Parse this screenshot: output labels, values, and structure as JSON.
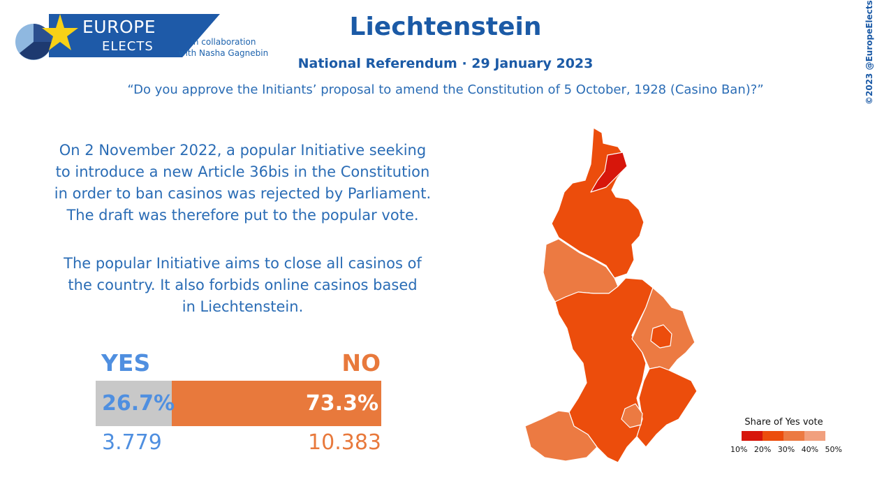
{
  "logo": {
    "line1": "EUROPE",
    "line2": "ELECTS"
  },
  "collaboration": {
    "line1": "in collaboration",
    "line2": "with Nasha Gagnebin"
  },
  "header": {
    "title": "Liechtenstein",
    "subtitle": "National Referendum · 29 January 2023",
    "question": "“Do you approve the Initiants’ proposal to amend the Constitution of 5 October, 1928 (Casino Ban)?”"
  },
  "credit": "©2023 @EuropeElects",
  "description": {
    "p1_lines": [
      "On 2 November 2022, a popular Initiative seeking",
      "to introduce a new Article 36bis in the Constitution",
      "in order to ban casinos was rejected by Parliament.",
      "The draft was therefore put to the popular vote."
    ],
    "p2_lines": [
      "The popular Initiative aims to close all casinos of",
      "the country. It also forbids online casinos based",
      "in Liechtenstein."
    ]
  },
  "results": {
    "yes_label": "YES",
    "no_label": "NO",
    "yes_pct_text": "26.7%",
    "no_pct_text": "73.3%",
    "yes_share": 26.7,
    "no_share": 73.3,
    "yes_votes": "3.779",
    "no_votes": "10.383"
  },
  "legend": {
    "title": "Share of Yes vote",
    "ticks": [
      "10%",
      "20%",
      "30%",
      "40%",
      "50%"
    ],
    "colors": [
      "#d7160b",
      "#ec4d0c",
      "#ec7a42",
      "#f1a07e"
    ]
  },
  "colors": {
    "brand_blue": "#1e5aa8",
    "yes_blue": "#4f8fe0",
    "no_orange": "#e8793c",
    "yes_bar_gray": "#c8c8c8"
  }
}
